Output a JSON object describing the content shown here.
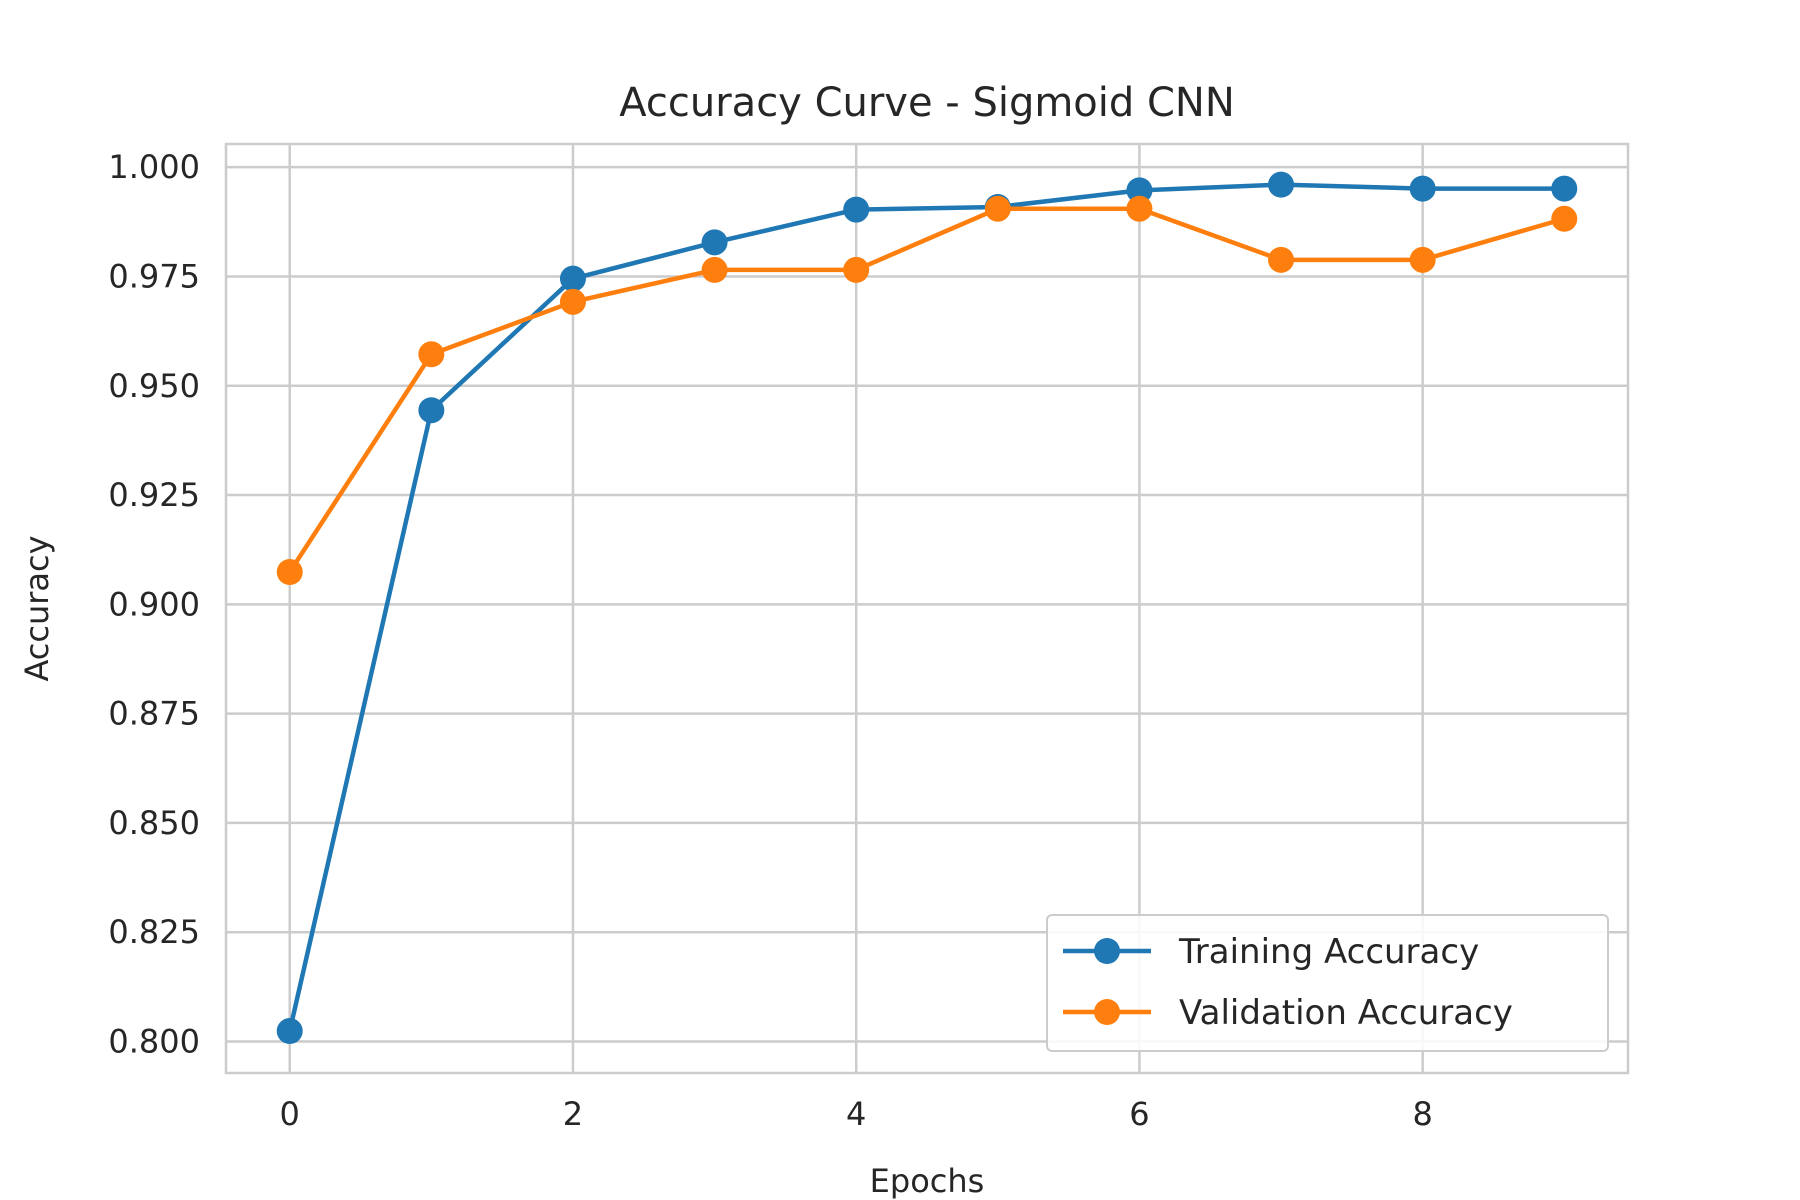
{
  "chart_data": {
    "type": "line",
    "title": "Accuracy Curve - Sigmoid CNN",
    "xlabel": "Epochs",
    "ylabel": "Accuracy",
    "xlim": [
      -0.45,
      9.45
    ],
    "ylim": [
      0.7928,
      1.0053
    ],
    "x_ticks": [
      0,
      2,
      4,
      6,
      8
    ],
    "x_tick_labels": [
      "0",
      "2",
      "4",
      "6",
      "8"
    ],
    "y_ticks": [
      0.8,
      0.825,
      0.85,
      0.875,
      0.9,
      0.925,
      0.95,
      0.975,
      1.0
    ],
    "y_tick_labels": [
      "0.800",
      "0.825",
      "0.850",
      "0.875",
      "0.900",
      "0.925",
      "0.950",
      "0.975",
      "1.000"
    ],
    "grid": true,
    "legend_position": "lower-right",
    "x": [
      0,
      1,
      2,
      3,
      4,
      5,
      6,
      7,
      8,
      9
    ],
    "series": [
      {
        "name": "Training Accuracy",
        "color": "#1f77b4",
        "values": [
          0.8024,
          0.9444,
          0.9745,
          0.9828,
          0.9903,
          0.9909,
          0.9947,
          0.996,
          0.9951,
          0.9951
        ]
      },
      {
        "name": "Validation Accuracy",
        "color": "#ff7f0e",
        "values": [
          0.9074,
          0.9572,
          0.9692,
          0.9765,
          0.9765,
          0.9905,
          0.9905,
          0.9788,
          0.9788,
          0.9882
        ]
      }
    ]
  }
}
